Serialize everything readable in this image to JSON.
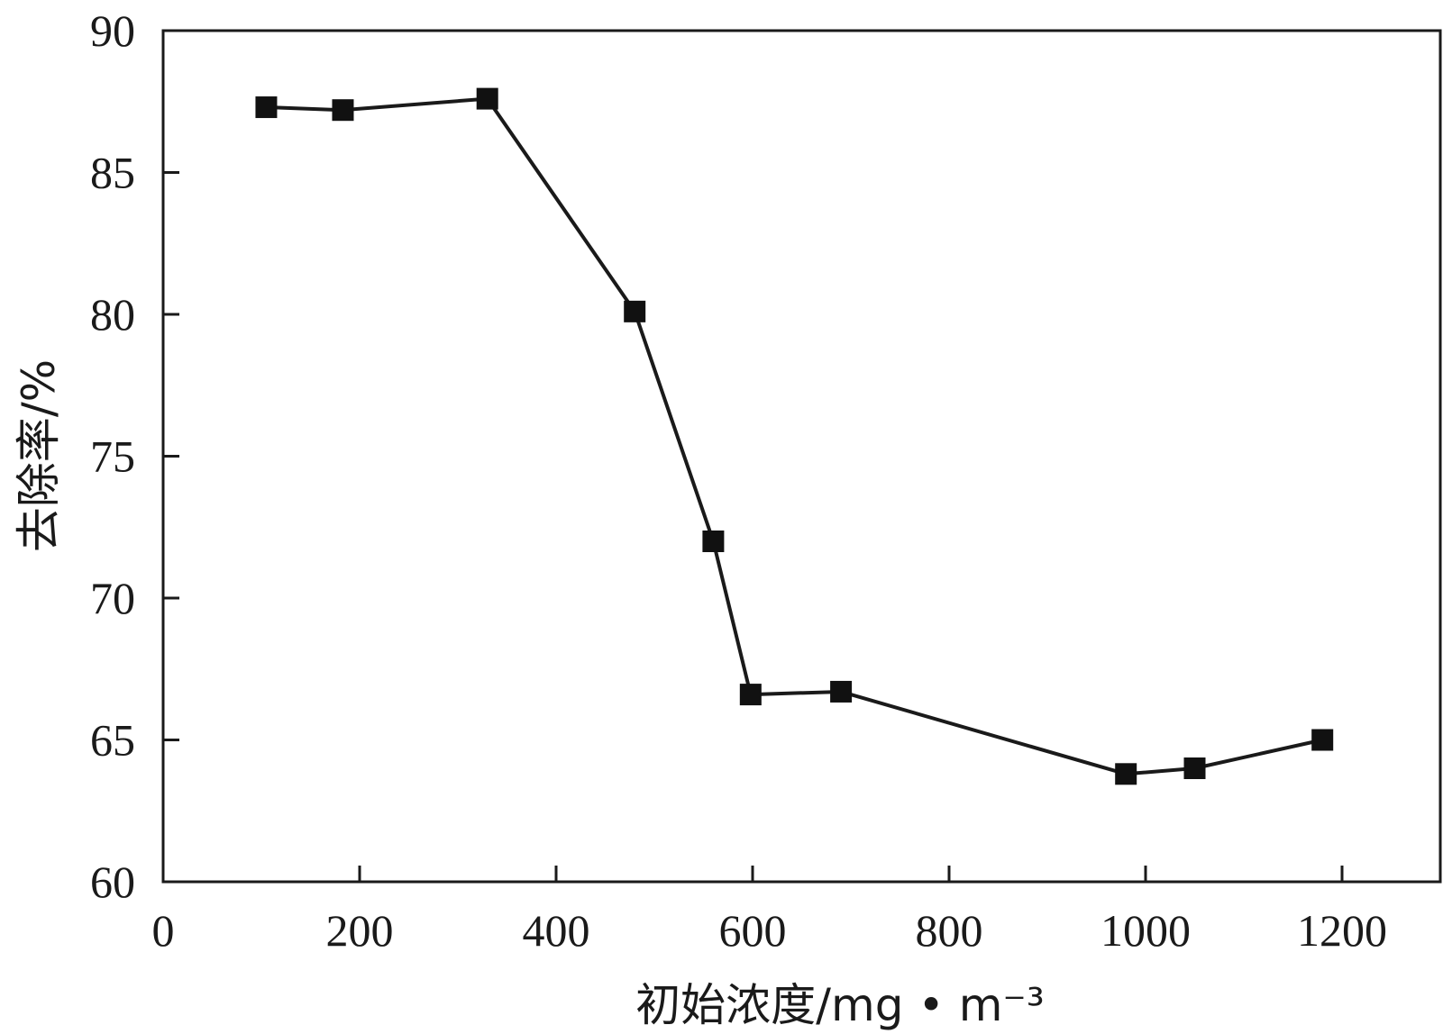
{
  "chart_data": {
    "type": "line",
    "xlabel": "初始浓度/mg • m⁻³",
    "ylabel": "去除率/%",
    "xlim": [
      0,
      1300
    ],
    "ylim": [
      60,
      90
    ],
    "x_ticks": [
      0,
      200,
      400,
      600,
      800,
      1000,
      1200
    ],
    "y_ticks": [
      60,
      65,
      70,
      75,
      80,
      85,
      90
    ],
    "grid": false,
    "marker": "square",
    "series": [
      {
        "x": [
          105,
          183,
          330,
          480,
          560,
          598,
          690,
          980,
          1050,
          1180
        ],
        "y": [
          87.3,
          87.2,
          87.6,
          80.1,
          72.0,
          66.6,
          66.7,
          63.8,
          64.0,
          65.0
        ]
      }
    ],
    "colors": {
      "line": "#1a1a1a",
      "marker": "#111111",
      "axis": "#1a1a1a"
    }
  }
}
